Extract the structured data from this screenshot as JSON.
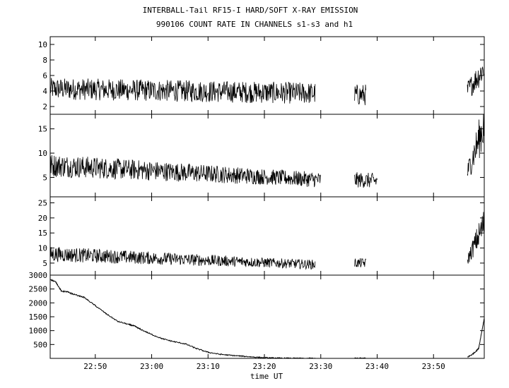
{
  "title_line1": "INTERBALL-Tail RF15-I HARD/SOFT X-RAY EMISSION",
  "title_line2": "990106  COUNT RATE IN CHANNELS s1-s3 and h1",
  "chart_data": {
    "type": "line",
    "xlabel": "time UT",
    "xlim": [
      "22:42",
      "23:59"
    ],
    "xticks": [
      "22:50",
      "23:00",
      "23:10",
      "23:20",
      "23:30",
      "23:40",
      "23:50"
    ],
    "grid": false,
    "color": "#000000",
    "panels": [
      {
        "name": "s1",
        "ylim": [
          1,
          11
        ],
        "yticks": [
          "2",
          "4",
          "6",
          "8",
          "10"
        ],
        "noise_amp": 1.4,
        "segments": [
          {
            "t0": "22:42",
            "t1": "23:29",
            "level_start": 4.3,
            "level_end": 3.7
          },
          {
            "t0": "23:36",
            "t1": "23:38",
            "level_start": 3.5,
            "level_end": 3.5
          },
          {
            "t0": "23:56",
            "t1": "23:59",
            "level_start": 4.0,
            "level_end": 7.0
          }
        ]
      },
      {
        "name": "s2",
        "ylim": [
          1,
          18
        ],
        "yticks": [
          "5",
          "10",
          "15"
        ],
        "noise_amp": 1.6,
        "segments": [
          {
            "t0": "22:42",
            "t1": "23:30",
            "level_start": 7.5,
            "level_end": 4.5
          },
          {
            "t0": "23:36",
            "t1": "23:40",
            "level_start": 4.5,
            "level_end": 4.3
          },
          {
            "t0": "23:56",
            "t1": "23:59",
            "level_start": 6.0,
            "level_end": 16.0
          }
        ]
      },
      {
        "name": "s3",
        "ylim": [
          1,
          27
        ],
        "yticks": [
          "5",
          "10",
          "15",
          "20",
          "25"
        ],
        "noise_amp": 1.6,
        "segments": [
          {
            "t0": "22:42",
            "t1": "23:29",
            "level_start": 8.0,
            "level_end": 4.5
          },
          {
            "t0": "23:36",
            "t1": "23:38",
            "level_start": 5.0,
            "level_end": 5.0
          },
          {
            "t0": "23:56",
            "t1": "23:59",
            "level_start": 6.0,
            "level_end": 18.0
          }
        ]
      },
      {
        "name": "h1",
        "ylim": [
          0,
          3000
        ],
        "yticks": [
          "500",
          "1000",
          "1500",
          "2000",
          "2500",
          "3000"
        ],
        "smooth": true,
        "points": [
          [
            "22:42",
            2850
          ],
          [
            "22:43",
            2750
          ],
          [
            "22:44",
            2420
          ],
          [
            "22:45",
            2400
          ],
          [
            "22:46",
            2320
          ],
          [
            "22:48",
            2200
          ],
          [
            "22:50",
            1900
          ],
          [
            "22:52",
            1600
          ],
          [
            "22:54",
            1330
          ],
          [
            "22:56",
            1220
          ],
          [
            "22:57",
            1160
          ],
          [
            "22:58",
            1050
          ],
          [
            "23:00",
            860
          ],
          [
            "23:02",
            700
          ],
          [
            "23:04",
            600
          ],
          [
            "23:06",
            520
          ],
          [
            "23:08",
            350
          ],
          [
            "23:10",
            220
          ],
          [
            "23:12",
            150
          ],
          [
            "23:14",
            110
          ],
          [
            "23:16",
            80
          ],
          [
            "23:18",
            50
          ],
          [
            "23:20",
            25
          ],
          [
            "23:22",
            10
          ],
          [
            "23:24",
            5
          ],
          [
            "23:26",
            2
          ],
          [
            "23:29",
            0
          ]
        ],
        "extra_segments": [
          [
            [
              "23:36",
              8
            ],
            [
              "23:38",
              6
            ]
          ],
          [
            [
              "23:56",
              40
            ],
            [
              "23:57",
              160
            ],
            [
              "23:58",
              350
            ],
            [
              "23:59",
              1450
            ]
          ]
        ]
      }
    ]
  }
}
